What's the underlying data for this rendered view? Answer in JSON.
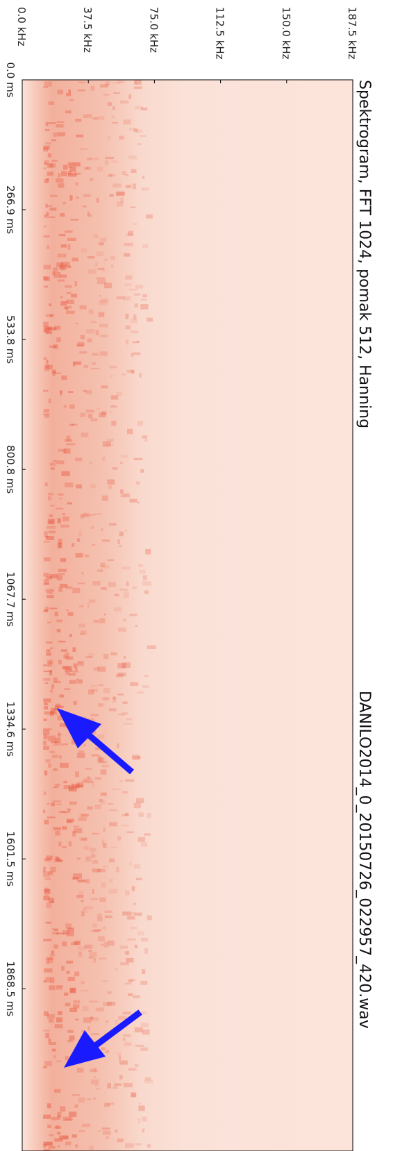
{
  "chart_data": {
    "type": "spectrogram",
    "title": "Spektrogram, FFT 1024, pomak 512, Hanning",
    "subtitle": "DANILO2014_0_20150726_022957_420.wav",
    "xlim": [
      0,
      2202
    ],
    "xticks": [
      {
        "value": 0,
        "label": "0.0 ms"
      },
      {
        "value": 266.9,
        "label": "266.9 ms"
      },
      {
        "value": 533.8,
        "label": "533.8 ms"
      },
      {
        "value": 800.8,
        "label": "800.8 ms"
      },
      {
        "value": 1067.7,
        "label": "1067.7 ms"
      },
      {
        "value": 1334.6,
        "label": "1334.6 ms"
      },
      {
        "value": 1601.5,
        "label": "1601.5 ms"
      },
      {
        "value": 1868.5,
        "label": "1868.5 ms"
      }
    ],
    "ylim": [
      0,
      187.5
    ],
    "yticks": [
      {
        "value": 0,
        "label": "0.0 kHz"
      },
      {
        "value": 37.5,
        "label": "37.5 kHz"
      },
      {
        "value": 75,
        "label": "75.0 kHz"
      },
      {
        "value": 112.5,
        "label": "112.5 kHz"
      },
      {
        "value": 150,
        "label": "150.0 kHz"
      },
      {
        "value": 187.5,
        "label": "187.5 kHz"
      }
    ],
    "color": "#e8553f"
  }
}
